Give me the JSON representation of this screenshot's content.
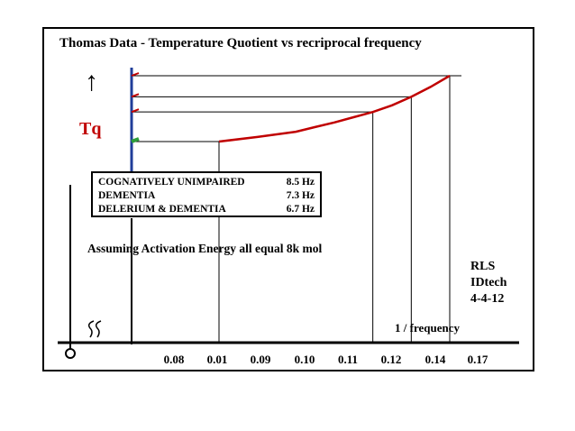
{
  "chart_data": {
    "type": "line",
    "title": "Thomas Data -  Temperature Quotient vs recriprocal frequency",
    "ylabel": "Tq",
    "xlabel": "1 / frequency",
    "x_tick_labels": [
      "0.08",
      "0.01",
      "0.09",
      "0.10",
      "0.11",
      "0.12",
      "0.14",
      "0.17"
    ],
    "grid": false,
    "series": [
      {
        "values": [
          {
            "x": 0.1,
            "y": 0.0
          },
          {
            "x": 0.12,
            "y": 0.07
          },
          {
            "x": 0.14,
            "y": 0.15
          },
          {
            "x": 0.15,
            "y": 0.22
          },
          {
            "x": 0.16,
            "y": 0.29
          },
          {
            "x": 0.17,
            "y": 0.37
          },
          {
            "x": 0.18,
            "y": 0.45
          },
          {
            "x": 0.19,
            "y": 0.55
          },
          {
            "x": 0.2,
            "y": 0.68
          },
          {
            "x": 0.21,
            "y": 0.83
          },
          {
            "x": 0.22,
            "y": 1.0
          }
        ]
      }
    ],
    "legend": {
      "placement": "left-middle",
      "entries": [
        {
          "label": "COGNATIVELY UNIMPAIRED",
          "value": "8.5 Hz"
        },
        {
          "label": "DEMENTIA",
          "value": "7.3 Hz"
        },
        {
          "label": "DELERIUM & DEMENTIA",
          "value": "6.7 Hz"
        }
      ]
    },
    "annotations": [
      "Assuming Activation Energy all equal 8k mol",
      "RLS",
      "IDtech",
      "4-4-12"
    ],
    "colors": {
      "curve": "#c00000",
      "y_axis": "#1f3d99",
      "tq_label": "#c00000",
      "marker": "#2e9e3a"
    }
  }
}
